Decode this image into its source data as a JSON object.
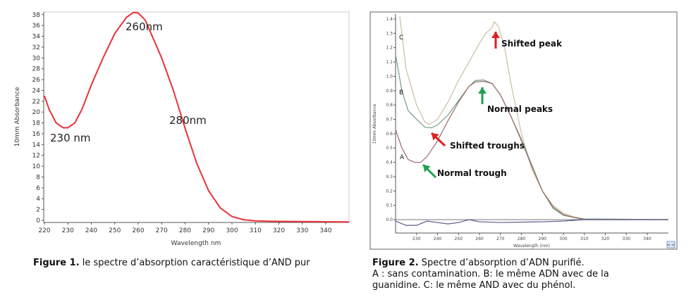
{
  "chart_data": [
    {
      "type": "line",
      "xlabel": "Wavelength nm",
      "ylabel": "10mm Absorbance",
      "xlim": [
        219,
        350
      ],
      "ylim": [
        -1,
        39
      ],
      "xticks": [
        220,
        230,
        240,
        250,
        260,
        270,
        280,
        290,
        300,
        310,
        320,
        330,
        340
      ],
      "yticks": [
        0,
        2,
        4,
        6,
        8,
        10,
        12,
        14,
        16,
        18,
        20,
        22,
        24,
        26,
        28,
        30,
        32,
        34,
        36,
        38
      ],
      "color": "#e8333a",
      "series": [
        {
          "x": [
            220,
            222,
            225,
            228,
            230,
            233,
            236,
            240,
            245,
            250,
            255,
            258,
            260,
            263,
            266,
            270,
            275,
            280,
            285,
            290,
            295,
            300,
            305,
            310,
            320,
            350
          ],
          "y": [
            23,
            20.5,
            18,
            17.1,
            17.1,
            18,
            20.5,
            25,
            30,
            34.5,
            37.5,
            38.4,
            38.3,
            37,
            34,
            30,
            24,
            17,
            10.5,
            5.5,
            2.3,
            0.7,
            0.1,
            -0.1,
            -0.2,
            -0.3
          ]
        }
      ],
      "annotations": [
        {
          "text": "260nm",
          "x": 259,
          "y": 36
        },
        {
          "text": "280nm",
          "x": 280,
          "y": 18
        },
        {
          "text": "230 nm",
          "x": 227,
          "y": 15
        }
      ]
    },
    {
      "type": "line",
      "xlabel": "Wavelength (nm)",
      "ylabel": "10mm Absorbance",
      "xlim": [
        220,
        350
      ],
      "ylim": [
        -0.09,
        1.42
      ],
      "xticks": [
        230,
        240,
        250,
        260,
        270,
        280,
        290,
        300,
        310,
        320,
        330,
        340
      ],
      "yticks": [
        "0.0",
        "0.1",
        "0.2",
        "0.3",
        "0.4",
        "0.5",
        "0.6",
        "0.7",
        "0.8",
        "0.9",
        "1.0",
        "1.1",
        "1.2",
        "1.3",
        "1.4"
      ],
      "series": [
        {
          "name": "C",
          "color": "#c9bfa0",
          "x": [
            222,
            225,
            230,
            234,
            236,
            240,
            245,
            250,
            255,
            260,
            263,
            266,
            267,
            269,
            272,
            275,
            280,
            285,
            290,
            295,
            300,
            305,
            310,
            350
          ],
          "y": [
            1.42,
            1.05,
            0.8,
            0.68,
            0.665,
            0.7,
            0.82,
            0.97,
            1.1,
            1.23,
            1.3,
            1.34,
            1.38,
            1.35,
            1.2,
            0.95,
            0.6,
            0.35,
            0.2,
            0.1,
            0.045,
            0.02,
            0.005,
            0
          ]
        },
        {
          "name": "B",
          "color": "#6f9f80",
          "x": [
            220,
            223,
            226,
            230,
            234,
            237,
            240,
            245,
            250,
            255,
            258,
            262,
            266,
            270,
            275,
            280,
            285,
            290,
            295,
            300,
            305,
            310,
            350
          ],
          "y": [
            1.15,
            0.9,
            0.76,
            0.7,
            0.645,
            0.64,
            0.66,
            0.73,
            0.83,
            0.93,
            0.97,
            0.975,
            0.95,
            0.87,
            0.72,
            0.56,
            0.38,
            0.2,
            0.08,
            0.03,
            0.015,
            0.005,
            0
          ]
        },
        {
          "name": "A",
          "color": "#9b6a6a",
          "x": [
            220,
            223,
            226,
            229,
            232,
            235,
            240,
            245,
            250,
            255,
            258,
            262,
            266,
            270,
            275,
            280,
            285,
            290,
            295,
            300,
            305,
            310,
            350
          ],
          "y": [
            0.63,
            0.5,
            0.42,
            0.4,
            0.4,
            0.44,
            0.55,
            0.69,
            0.82,
            0.93,
            0.96,
            0.965,
            0.95,
            0.87,
            0.72,
            0.55,
            0.37,
            0.2,
            0.09,
            0.035,
            0.015,
            0,
            0
          ]
        },
        {
          "color": "#5a5a8a",
          "x": [
            220,
            225,
            230,
            235,
            240,
            245,
            250,
            255,
            260,
            270,
            290,
            300,
            310,
            350
          ],
          "y": [
            -0.01,
            -0.04,
            -0.04,
            -0.01,
            -0.02,
            -0.03,
            -0.02,
            0,
            -0.015,
            -0.02,
            -0.015,
            -0.01,
            0,
            0
          ]
        }
      ],
      "annotations": [
        {
          "text": "Shifted peak",
          "color": "#e02020",
          "x": 268,
          "y": 1.26
        },
        {
          "text": "Normal peaks",
          "color": "#20a050",
          "x": 262,
          "y": 0.81
        },
        {
          "text": "Shifted troughs",
          "color": "#e02020",
          "x": 237,
          "y": 0.62
        },
        {
          "text": "Normal trough",
          "color": "#20a050",
          "x": 232,
          "y": 0.39
        }
      ],
      "corner_button": "<<"
    }
  ],
  "captions": {
    "fig1_label": "Figure 1.",
    "fig1_text": " le spectre d’absorption caractéristique d’AND pur",
    "fig2_label": "Figure 2.",
    "fig2_text": " Spectre d’absorption d’ADN purifié.",
    "fig2_line2": "A : sans contamination. B: le même ADN avec de la",
    "fig2_line3": "guanidine. C: le même AND avec du phénol."
  }
}
